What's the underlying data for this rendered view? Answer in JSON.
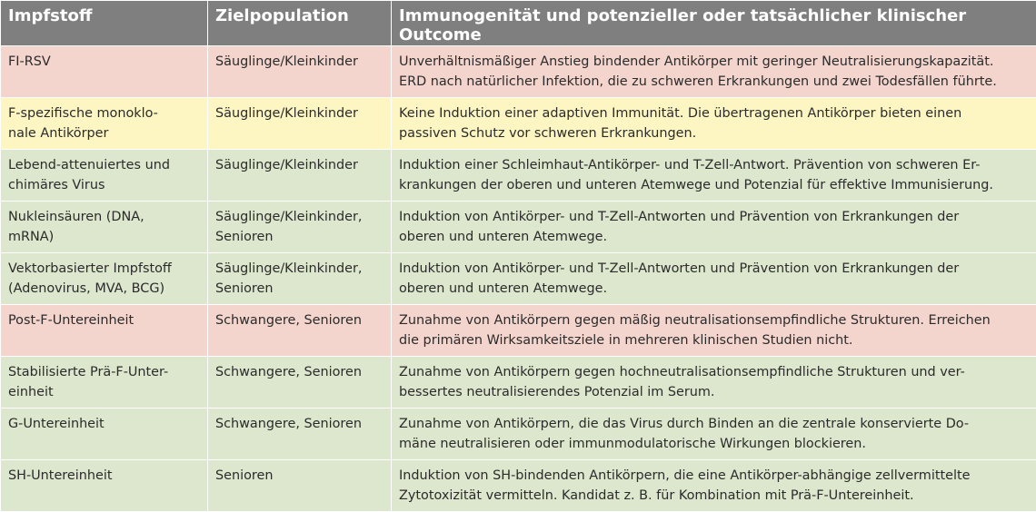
{
  "header": {
    "col1": "Impfstoff",
    "col2": "Zielpopulation",
    "col3_line1": "Immunogenität und potenzieller oder tatsächlicher klinischer",
    "col3_line2": "Outcome"
  },
  "rows": [
    {
      "color": "#f3d5cd",
      "vaccine": [
        "FI-RSV"
      ],
      "population": [
        "Säuglinge/Kleinkinder"
      ],
      "outcome": [
        "Unverhältnismäßiger Anstieg bindender Antikörper mit geringer Neutralisierungskapazität.",
        "ERD nach natürlicher Infektion, die zu schweren Erkrankungen und zwei Todesfällen führte."
      ]
    },
    {
      "color": "#fdf6c3",
      "vaccine": [
        "F-spezifische monoklo-",
        "nale Antikörper"
      ],
      "population": [
        "Säuglinge/Kleinkinder"
      ],
      "outcome": [
        "Keine Induktion einer adaptiven Immunität. Die übertragenen Antikörper bieten einen",
        "passiven Schutz vor schweren Erkrankungen."
      ]
    },
    {
      "color": "#dce7cd",
      "vaccine": [
        "Lebend-attenuiertes und",
        "chimäres Virus"
      ],
      "population": [
        "Säuglinge/Kleinkinder"
      ],
      "outcome": [
        "Induktion einer Schleimhaut-Antikörper- und T-Zell-Antwort. Prävention von schweren Er-",
        "krankungen der oberen und unteren Atemwege und Potenzial für effektive Immunisierung."
      ]
    },
    {
      "color": "#dce7cd",
      "vaccine": [
        "Nukleinsäuren (DNA,",
        "mRNA)"
      ],
      "population": [
        "Säuglinge/Kleinkinder,",
        "Senioren"
      ],
      "outcome": [
        "Induktion von Antikörper- und T-Zell-Antworten und Prävention von Erkrankungen der",
        "oberen und unteren Atemwege."
      ]
    },
    {
      "color": "#dce7cd",
      "vaccine": [
        "Vektorbasierter Impfstoff",
        "(Adenovirus, MVA, BCG)"
      ],
      "population": [
        "Säuglinge/Kleinkinder,",
        "Senioren"
      ],
      "outcome": [
        "Induktion von Antikörper- und T-Zell-Antworten und Prävention von Erkrankungen der",
        "oberen und unteren Atemwege."
      ]
    },
    {
      "color": "#f3d5cd",
      "vaccine": [
        "Post-F-Untereinheit"
      ],
      "population": [
        "Schwangere, Senioren"
      ],
      "outcome": [
        "Zunahme von Antikörpern gegen mäßig neutralisationsempfindliche Strukturen. Erreichen",
        "die primären Wirksamkeitsziele in mehreren klinischen Studien nicht."
      ]
    },
    {
      "color": "#dce7cd",
      "vaccine": [
        "Stabilisierte Prä-F-Unter-",
        "einheit"
      ],
      "population": [
        "Schwangere, Senioren"
      ],
      "outcome": [
        "Zunahme von Antikörpern gegen hochneutralisationsempfindliche Strukturen und ver-",
        "bessertes neutralisierendes Potenzial im Serum."
      ]
    },
    {
      "color": "#dce7cd",
      "vaccine": [
        "G-Untereinheit"
      ],
      "population": [
        "Schwangere, Senioren"
      ],
      "outcome": [
        "Zunahme von Antikörpern, die das Virus durch Binden an die zentrale konservierte Do-",
        "mäne neutralisieren oder immunmodulatorische Wirkungen blockieren."
      ]
    },
    {
      "color": "#dce7cd",
      "vaccine": [
        "SH-Untereinheit"
      ],
      "population": [
        "Senioren"
      ],
      "outcome": [
        "Induktion von SH-bindenden Antikörpern, die eine Antikörper-abhängige zellvermittelte",
        "Zytotoxizität vermitteln. Kandidat z. B. für Kombination mit Prä-F-Untereinheit."
      ]
    }
  ]
}
